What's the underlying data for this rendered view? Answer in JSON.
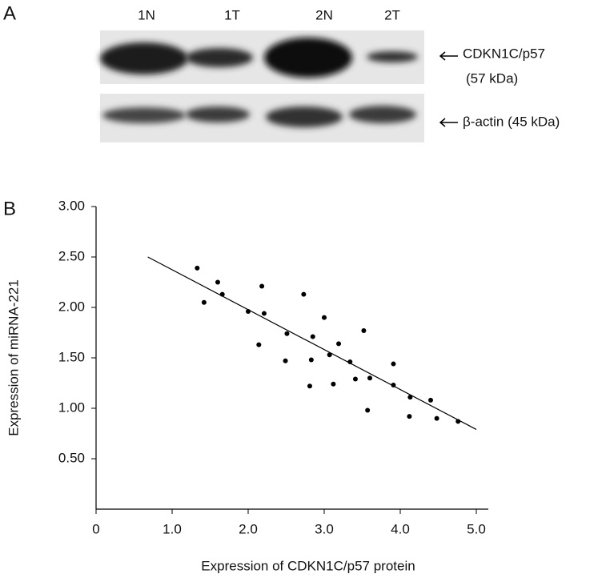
{
  "panel_a": {
    "label": "A",
    "lanes": [
      "1N",
      "1T",
      "2N",
      "2T"
    ],
    "annotations": [
      "CDKN1C/p57",
      "(57 kDa)",
      "β-actin (45 kDa)"
    ]
  },
  "chart_data": {
    "type": "scatter",
    "panel_label": "B",
    "x_label": "Expression of CDKN1C/p57 protein",
    "y_label": "Expression of miRNA-221",
    "xlim": [
      0,
      5
    ],
    "ylim": [
      0,
      3
    ],
    "xticks": [
      0,
      {
        "value": 1,
        "label": "1.0"
      },
      {
        "value": 2,
        "label": "2.0"
      },
      {
        "value": 3,
        "label": "3.0"
      },
      {
        "value": 4,
        "label": "4.0"
      },
      {
        "value": 5,
        "label": "5.0"
      }
    ],
    "yticks": [
      {
        "value": 0.5,
        "label": "0.50"
      },
      {
        "value": 1,
        "label": "1.00"
      },
      {
        "value": 1.5,
        "label": "1.50"
      },
      {
        "value": 2,
        "label": "2.00"
      },
      {
        "value": 2.5,
        "label": "2.50"
      },
      {
        "value": 3,
        "label": "3.00"
      }
    ],
    "series": [
      {
        "color": "#000000",
        "x": [
          1.33,
          1.42,
          1.6,
          1.66,
          2.0,
          2.18,
          2.21,
          2.14,
          2.51,
          2.49,
          2.73,
          2.85,
          2.83,
          2.81,
          3.0,
          3.07,
          3.19,
          3.12,
          3.34,
          3.52,
          3.41,
          3.6,
          3.57,
          3.91,
          3.91,
          4.13,
          4.12,
          4.4,
          4.48,
          4.76
        ],
        "y": [
          2.39,
          2.05,
          2.25,
          2.13,
          1.96,
          2.21,
          1.94,
          1.63,
          1.74,
          1.47,
          2.13,
          1.71,
          1.48,
          1.22,
          1.9,
          1.53,
          1.64,
          1.24,
          1.46,
          1.77,
          1.29,
          1.3,
          0.98,
          1.44,
          1.23,
          1.11,
          0.92,
          1.08,
          0.9,
          0.87
        ]
      }
    ],
    "fit_line": {
      "color": "#000000",
      "x": [
        0.68,
        5.0
      ],
      "y": [
        2.5,
        0.79
      ]
    }
  }
}
